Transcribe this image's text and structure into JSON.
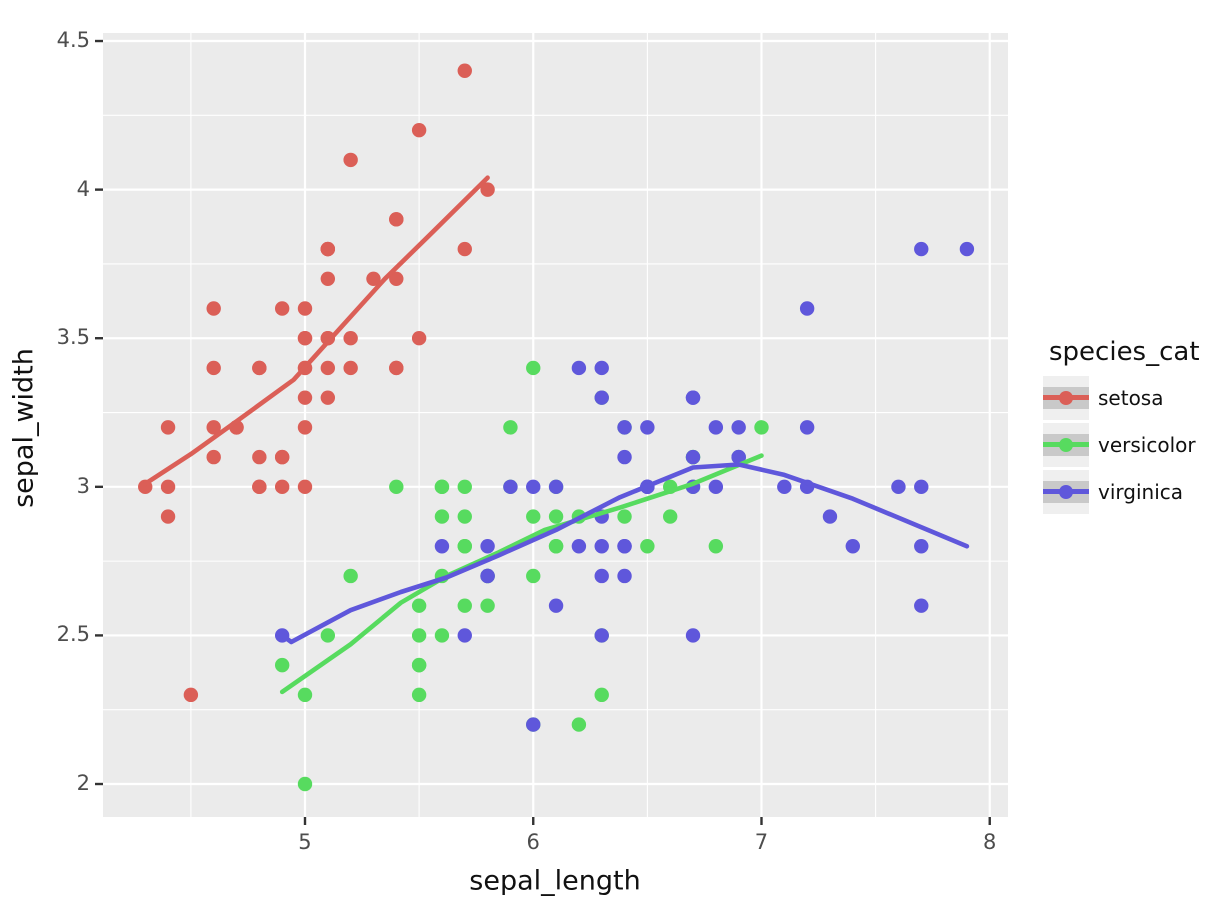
{
  "chart_data": {
    "type": "scatter",
    "title": "",
    "xlabel": "sepal_length",
    "ylabel": "sepal_width",
    "legend_title": "species_cat",
    "legend_position": "right",
    "grid": true,
    "panel_bg": "#EBEBEB",
    "grid_color": "#FFFFFF",
    "tick_color": "#333333",
    "tick_label_color": "#4D4D4D",
    "legend_key_bg": "#EFEFEF",
    "legend_key_band": "#C9C9C9",
    "xlim": [
      4.115,
      8.08
    ],
    "ylim": [
      1.889,
      4.527
    ],
    "x_ticks": {
      "values": [
        5,
        6,
        7,
        8
      ],
      "labels": [
        "5",
        "6",
        "7",
        "8"
      ]
    },
    "y_ticks": {
      "values": [
        2,
        2.5,
        3,
        3.5,
        4,
        4.5
      ],
      "labels": [
        "2",
        "2.5",
        "3",
        "3.5",
        "4",
        "4.5"
      ]
    },
    "x_minor_ticks": [
      4.5,
      5.5,
      6.5,
      7.5
    ],
    "y_minor_ticks": [
      2.25,
      2.75,
      3.25,
      3.75,
      4.25
    ],
    "series": [
      {
        "name": "setosa",
        "color": "#DB5F57",
        "points": [
          [
            5.1,
            3.5
          ],
          [
            4.9,
            3.0
          ],
          [
            4.7,
            3.2
          ],
          [
            4.6,
            3.1
          ],
          [
            5.0,
            3.6
          ],
          [
            5.4,
            3.9
          ],
          [
            4.6,
            3.4
          ],
          [
            5.0,
            3.4
          ],
          [
            4.4,
            2.9
          ],
          [
            4.9,
            3.1
          ],
          [
            5.4,
            3.7
          ],
          [
            4.8,
            3.4
          ],
          [
            4.8,
            3.0
          ],
          [
            4.3,
            3.0
          ],
          [
            5.8,
            4.0
          ],
          [
            5.7,
            4.4
          ],
          [
            5.4,
            3.9
          ],
          [
            5.1,
            3.5
          ],
          [
            5.7,
            3.8
          ],
          [
            5.1,
            3.8
          ],
          [
            5.4,
            3.4
          ],
          [
            5.1,
            3.7
          ],
          [
            4.6,
            3.6
          ],
          [
            5.1,
            3.3
          ],
          [
            4.8,
            3.4
          ],
          [
            5.0,
            3.0
          ],
          [
            5.0,
            3.4
          ],
          [
            5.2,
            3.5
          ],
          [
            5.2,
            3.4
          ],
          [
            4.7,
            3.2
          ],
          [
            4.8,
            3.1
          ],
          [
            5.4,
            3.4
          ],
          [
            5.2,
            4.1
          ],
          [
            5.5,
            4.2
          ],
          [
            4.9,
            3.1
          ],
          [
            5.0,
            3.2
          ],
          [
            5.5,
            3.5
          ],
          [
            4.9,
            3.6
          ],
          [
            4.4,
            3.0
          ],
          [
            5.1,
            3.4
          ],
          [
            5.0,
            3.5
          ],
          [
            4.5,
            2.3
          ],
          [
            4.4,
            3.2
          ],
          [
            5.0,
            3.5
          ],
          [
            5.1,
            3.8
          ],
          [
            4.8,
            3.0
          ],
          [
            5.1,
            3.8
          ],
          [
            4.6,
            3.2
          ],
          [
            5.3,
            3.7
          ],
          [
            5.0,
            3.3
          ]
        ],
        "smooth": [
          [
            4.3,
            3.01
          ],
          [
            4.5,
            3.11
          ],
          [
            4.7,
            3.22
          ],
          [
            4.95,
            3.36
          ],
          [
            5.15,
            3.53
          ],
          [
            5.35,
            3.7
          ],
          [
            5.55,
            3.85
          ],
          [
            5.8,
            4.04
          ]
        ]
      },
      {
        "name": "versicolor",
        "color": "#57DB5F",
        "points": [
          [
            7.0,
            3.2
          ],
          [
            6.4,
            3.2
          ],
          [
            6.9,
            3.1
          ],
          [
            5.5,
            2.3
          ],
          [
            6.5,
            2.8
          ],
          [
            5.7,
            2.8
          ],
          [
            6.3,
            3.3
          ],
          [
            4.9,
            2.4
          ],
          [
            6.6,
            2.9
          ],
          [
            5.2,
            2.7
          ],
          [
            5.0,
            2.0
          ],
          [
            5.9,
            3.0
          ],
          [
            6.0,
            2.2
          ],
          [
            6.1,
            2.9
          ],
          [
            5.6,
            2.9
          ],
          [
            6.7,
            3.1
          ],
          [
            5.6,
            3.0
          ],
          [
            5.8,
            2.7
          ],
          [
            6.2,
            2.2
          ],
          [
            5.6,
            2.5
          ],
          [
            5.9,
            3.2
          ],
          [
            6.1,
            2.8
          ],
          [
            6.3,
            2.5
          ],
          [
            6.1,
            2.8
          ],
          [
            6.4,
            2.9
          ],
          [
            6.6,
            3.0
          ],
          [
            6.8,
            2.8
          ],
          [
            6.7,
            3.0
          ],
          [
            6.0,
            2.9
          ],
          [
            5.7,
            2.6
          ],
          [
            5.5,
            2.4
          ],
          [
            5.5,
            2.4
          ],
          [
            5.8,
            2.7
          ],
          [
            6.0,
            2.7
          ],
          [
            5.4,
            3.0
          ],
          [
            6.0,
            3.4
          ],
          [
            6.7,
            3.1
          ],
          [
            6.3,
            2.3
          ],
          [
            5.6,
            3.0
          ],
          [
            5.5,
            2.5
          ],
          [
            5.5,
            2.6
          ],
          [
            6.1,
            3.0
          ],
          [
            5.8,
            2.6
          ],
          [
            5.0,
            2.3
          ],
          [
            5.6,
            2.7
          ],
          [
            5.7,
            3.0
          ],
          [
            5.7,
            2.9
          ],
          [
            6.2,
            2.9
          ],
          [
            5.1,
            2.5
          ],
          [
            5.7,
            2.8
          ]
        ],
        "smooth": [
          [
            4.9,
            2.31
          ],
          [
            5.2,
            2.47
          ],
          [
            5.42,
            2.61
          ],
          [
            5.62,
            2.7
          ],
          [
            5.85,
            2.78
          ],
          [
            6.05,
            2.855
          ],
          [
            6.38,
            2.93
          ],
          [
            6.7,
            3.01
          ],
          [
            7.0,
            3.105
          ]
        ]
      },
      {
        "name": "virginica",
        "color": "#5F57DB",
        "points": [
          [
            6.3,
            3.3
          ],
          [
            5.8,
            2.7
          ],
          [
            7.1,
            3.0
          ],
          [
            6.3,
            2.9
          ],
          [
            6.5,
            3.0
          ],
          [
            7.6,
            3.0
          ],
          [
            4.9,
            2.5
          ],
          [
            7.3,
            2.9
          ],
          [
            6.7,
            2.5
          ],
          [
            7.2,
            3.6
          ],
          [
            6.5,
            3.2
          ],
          [
            6.4,
            2.7
          ],
          [
            6.8,
            3.0
          ],
          [
            5.7,
            2.5
          ],
          [
            5.8,
            2.8
          ],
          [
            6.4,
            3.2
          ],
          [
            6.5,
            3.0
          ],
          [
            7.7,
            3.8
          ],
          [
            7.7,
            2.6
          ],
          [
            6.0,
            2.2
          ],
          [
            6.9,
            3.2
          ],
          [
            5.6,
            2.8
          ],
          [
            7.7,
            2.8
          ],
          [
            6.3,
            2.7
          ],
          [
            6.7,
            3.3
          ],
          [
            7.2,
            3.2
          ],
          [
            6.2,
            2.8
          ],
          [
            6.1,
            3.0
          ],
          [
            6.4,
            2.8
          ],
          [
            7.2,
            3.0
          ],
          [
            7.4,
            2.8
          ],
          [
            7.9,
            3.8
          ],
          [
            6.4,
            2.8
          ],
          [
            6.3,
            2.8
          ],
          [
            6.1,
            2.6
          ],
          [
            7.7,
            3.0
          ],
          [
            6.3,
            3.4
          ],
          [
            6.4,
            3.1
          ],
          [
            6.0,
            3.0
          ],
          [
            6.9,
            3.1
          ],
          [
            6.7,
            3.1
          ],
          [
            6.9,
            3.1
          ],
          [
            5.8,
            2.7
          ],
          [
            6.8,
            3.2
          ],
          [
            6.7,
            3.3
          ],
          [
            6.7,
            3.0
          ],
          [
            6.3,
            2.5
          ],
          [
            6.5,
            3.0
          ],
          [
            6.2,
            3.4
          ],
          [
            5.9,
            3.0
          ]
        ],
        "smooth": [
          [
            4.9,
            2.5
          ],
          [
            4.94,
            2.478
          ],
          [
            5.2,
            2.585
          ],
          [
            5.42,
            2.646
          ],
          [
            5.62,
            2.695
          ],
          [
            5.85,
            2.77
          ],
          [
            6.1,
            2.855
          ],
          [
            6.38,
            2.965
          ],
          [
            6.7,
            3.065
          ],
          [
            6.9,
            3.075
          ],
          [
            7.1,
            3.04
          ],
          [
            7.4,
            2.96
          ],
          [
            7.9,
            2.8
          ]
        ]
      }
    ]
  }
}
